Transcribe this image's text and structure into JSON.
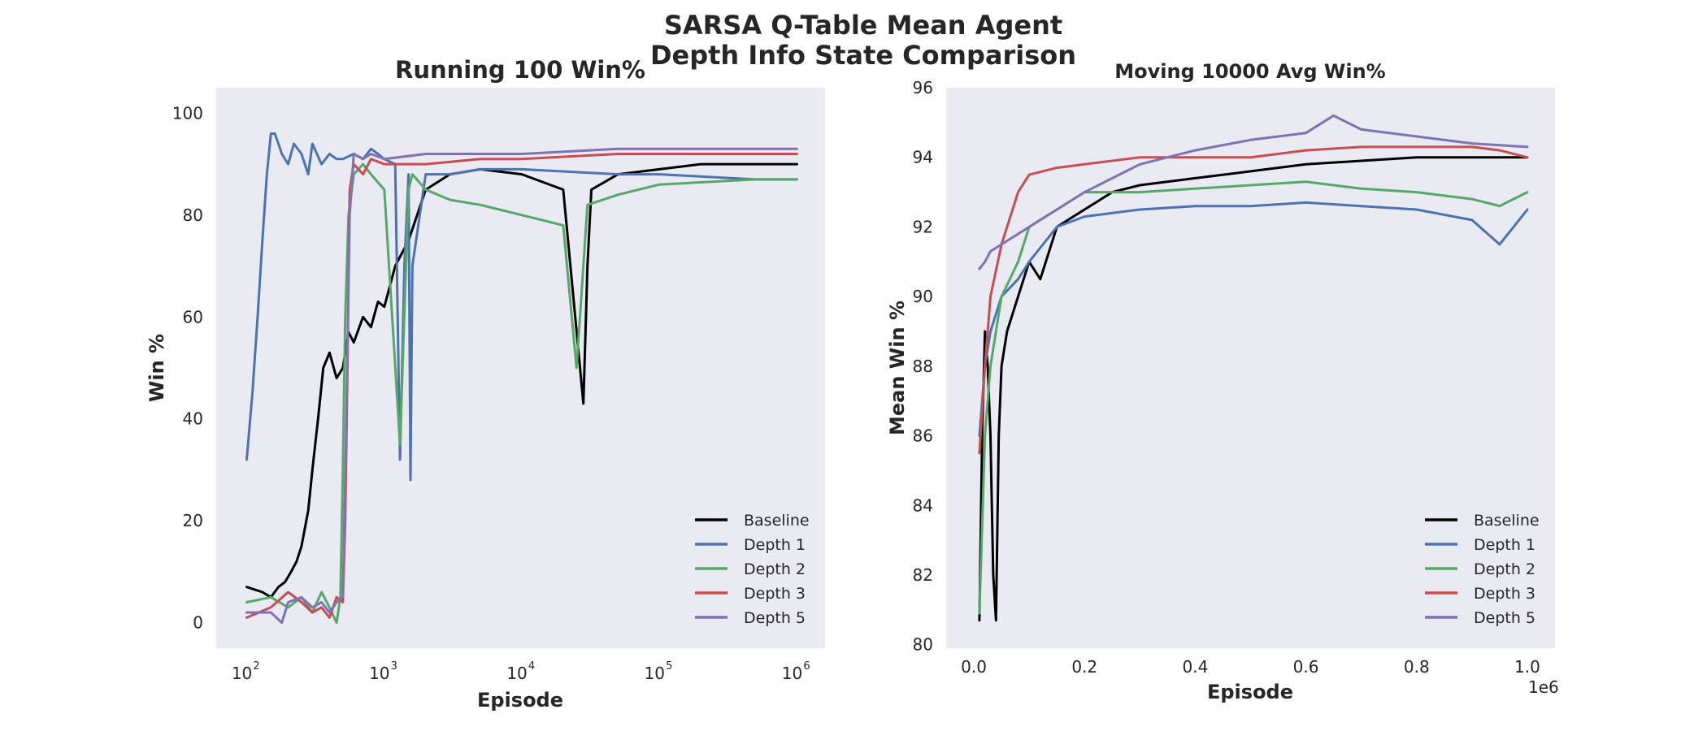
{
  "figure": {
    "title_line1": "SARSA Q-Table Mean Agent",
    "title_line2": "Depth Info State Comparison"
  },
  "colors": {
    "Baseline": "#000000",
    "Depth 1": "#4c72b0",
    "Depth 2": "#55a868",
    "Depth 3": "#c44e52",
    "Depth 5": "#8172b2",
    "plot_background": "#eaeaf2"
  },
  "chart_data": [
    {
      "type": "line",
      "title": "Running 100 Win%",
      "xlabel": "Episode",
      "ylabel": "Win %",
      "xscale": "log",
      "xlim": [
        60,
        1600000
      ],
      "ylim": [
        -5,
        105
      ],
      "xticks": [
        {
          "value": 100,
          "base": "10",
          "exp": "2"
        },
        {
          "value": 1000,
          "base": "10",
          "exp": "3"
        },
        {
          "value": 10000,
          "base": "10",
          "exp": "4"
        },
        {
          "value": 100000,
          "base": "10",
          "exp": "5"
        },
        {
          "value": 1000000,
          "base": "10",
          "exp": "6"
        }
      ],
      "yticks": [
        0,
        20,
        40,
        60,
        80,
        100
      ],
      "grid": false,
      "legend_position": "lower-right",
      "legend": [
        "Baseline",
        "Depth 1",
        "Depth 2",
        "Depth 3",
        "Depth 5"
      ],
      "series": [
        {
          "name": "Baseline",
          "x": [
            100,
            130,
            150,
            170,
            190,
            210,
            230,
            250,
            280,
            300,
            330,
            360,
            400,
            450,
            500,
            550,
            600,
            700,
            800,
            900,
            1000,
            1200,
            1500,
            2000,
            3000,
            5000,
            10000,
            20000,
            28000,
            30000,
            32000,
            50000,
            100000,
            200000,
            500000,
            1000000
          ],
          "y": [
            7,
            6,
            5,
            7,
            8,
            10,
            12,
            15,
            22,
            30,
            40,
            50,
            53,
            48,
            50,
            57,
            55,
            60,
            58,
            63,
            62,
            70,
            75,
            85,
            88,
            89,
            88,
            85,
            43,
            70,
            85,
            88,
            89,
            90,
            90,
            90
          ]
        },
        {
          "name": "Depth 1",
          "x": [
            100,
            110,
            120,
            130,
            140,
            150,
            160,
            170,
            180,
            200,
            220,
            250,
            280,
            300,
            350,
            400,
            450,
            500,
            600,
            700,
            800,
            900,
            1000,
            1200,
            1300,
            1400,
            1500,
            1550,
            1600,
            2000,
            3000,
            5000,
            10000,
            50000,
            100000,
            500000,
            1000000
          ],
          "y": [
            32,
            45,
            60,
            75,
            88,
            96,
            96,
            94,
            92,
            90,
            94,
            92,
            88,
            94,
            90,
            92,
            91,
            91,
            92,
            91,
            93,
            92,
            91,
            90,
            32,
            70,
            88,
            28,
            70,
            88,
            88,
            89,
            89,
            88,
            88,
            87,
            87
          ]
        },
        {
          "name": "Depth 2",
          "x": [
            100,
            150,
            200,
            250,
            300,
            350,
            400,
            450,
            480,
            500,
            520,
            550,
            600,
            700,
            800,
            1000,
            1300,
            1500,
            1600,
            2000,
            3000,
            5000,
            10000,
            20000,
            25000,
            30000,
            50000,
            100000,
            500000,
            1000000
          ],
          "y": [
            4,
            5,
            3,
            5,
            2,
            6,
            3,
            0,
            5,
            30,
            60,
            80,
            88,
            90,
            88,
            85,
            35,
            85,
            88,
            85,
            83,
            82,
            80,
            78,
            50,
            82,
            84,
            86,
            87,
            87
          ]
        },
        {
          "name": "Depth 3",
          "x": [
            100,
            150,
            200,
            250,
            300,
            350,
            400,
            450,
            500,
            520,
            540,
            560,
            600,
            700,
            800,
            1000,
            2000,
            5000,
            10000,
            50000,
            100000,
            500000,
            1000000
          ],
          "y": [
            1,
            3,
            6,
            4,
            2,
            3,
            1,
            5,
            4,
            20,
            50,
            85,
            90,
            88,
            91,
            90,
            90,
            91,
            91,
            92,
            92,
            92,
            92
          ]
        },
        {
          "name": "Depth 5",
          "x": [
            100,
            150,
            180,
            200,
            250,
            300,
            350,
            400,
            450,
            500,
            530,
            560,
            600,
            700,
            800,
            1000,
            2000,
            5000,
            10000,
            50000,
            100000,
            500000,
            1000000
          ],
          "y": [
            2,
            2,
            0,
            4,
            5,
            3,
            4,
            2,
            4,
            5,
            40,
            80,
            92,
            91,
            92,
            91,
            92,
            92,
            92,
            93,
            93,
            93,
            93
          ]
        }
      ]
    },
    {
      "type": "line",
      "title": "Moving 10000 Avg Win%",
      "xlabel": "Episode",
      "ylabel": "Mean Win %",
      "x_offset_text": "1e6",
      "xlim": [
        -0.05,
        1.05
      ],
      "ylim": [
        79.9,
        96.0
      ],
      "xticks": [
        "0.0",
        "0.2",
        "0.4",
        "0.6",
        "0.8",
        "1.0"
      ],
      "yticks": [
        80,
        82,
        84,
        86,
        88,
        90,
        92,
        94,
        96
      ],
      "grid": false,
      "legend_position": "lower-right",
      "legend": [
        "Baseline",
        "Depth 1",
        "Depth 2",
        "Depth 3",
        "Depth 5"
      ],
      "series": [
        {
          "name": "Baseline",
          "x": [
            0.01,
            0.015,
            0.02,
            0.025,
            0.03,
            0.035,
            0.04,
            0.045,
            0.05,
            0.06,
            0.08,
            0.1,
            0.12,
            0.15,
            0.2,
            0.25,
            0.3,
            0.4,
            0.5,
            0.6,
            0.7,
            0.8,
            0.9,
            1.0
          ],
          "y": [
            80.7,
            86,
            89,
            88,
            86,
            82,
            80.7,
            86,
            88,
            89,
            90,
            91,
            90.5,
            92,
            92.5,
            93,
            93.2,
            93.4,
            93.6,
            93.8,
            93.9,
            94,
            94,
            94
          ]
        },
        {
          "name": "Depth 1",
          "x": [
            0.01,
            0.02,
            0.03,
            0.05,
            0.08,
            0.1,
            0.15,
            0.2,
            0.3,
            0.4,
            0.5,
            0.6,
            0.7,
            0.8,
            0.9,
            0.95,
            1.0
          ],
          "y": [
            86,
            88,
            89,
            90,
            90.5,
            91,
            92,
            92.3,
            92.5,
            92.6,
            92.6,
            92.7,
            92.6,
            92.5,
            92.2,
            91.5,
            92.5
          ]
        },
        {
          "name": "Depth 2",
          "x": [
            0.01,
            0.02,
            0.03,
            0.05,
            0.08,
            0.1,
            0.15,
            0.2,
            0.3,
            0.4,
            0.5,
            0.6,
            0.7,
            0.8,
            0.9,
            0.95,
            1.0
          ],
          "y": [
            80.9,
            86,
            88,
            90,
            91,
            92,
            92.5,
            93,
            93,
            93.1,
            93.2,
            93.3,
            93.1,
            93,
            92.8,
            92.6,
            93
          ]
        },
        {
          "name": "Depth 3",
          "x": [
            0.01,
            0.02,
            0.03,
            0.05,
            0.08,
            0.1,
            0.15,
            0.2,
            0.3,
            0.4,
            0.5,
            0.6,
            0.7,
            0.8,
            0.9,
            0.95,
            1.0
          ],
          "y": [
            85.5,
            88,
            90,
            91.5,
            93,
            93.5,
            93.7,
            93.8,
            94,
            94,
            94,
            94.2,
            94.3,
            94.3,
            94.3,
            94.2,
            94
          ]
        },
        {
          "name": "Depth 5",
          "x": [
            0.01,
            0.02,
            0.03,
            0.05,
            0.08,
            0.1,
            0.15,
            0.2,
            0.3,
            0.4,
            0.5,
            0.6,
            0.65,
            0.7,
            0.8,
            0.9,
            1.0
          ],
          "y": [
            90.8,
            91,
            91.3,
            91.5,
            91.8,
            92,
            92.5,
            93,
            93.8,
            94.2,
            94.5,
            94.7,
            95.2,
            94.8,
            94.6,
            94.4,
            94.3
          ]
        }
      ]
    }
  ]
}
